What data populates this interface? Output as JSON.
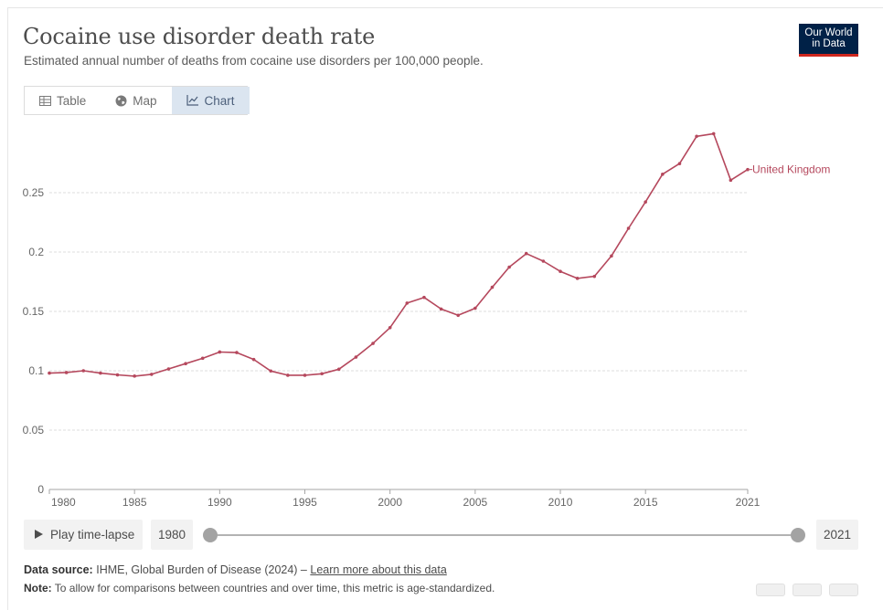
{
  "header": {
    "title": "Cocaine use disorder death rate",
    "subtitle": "Estimated annual number of deaths from cocaine use disorders per 100,000 people.",
    "logo_line1": "Our World",
    "logo_line2": "in Data"
  },
  "tabs": [
    {
      "label": "Table",
      "icon": "table-icon",
      "active": false
    },
    {
      "label": "Map",
      "icon": "globe-icon",
      "active": false
    },
    {
      "label": "Chart",
      "icon": "line-chart-icon",
      "active": true
    }
  ],
  "chart_data": {
    "type": "line",
    "title": "",
    "xlabel": "",
    "ylabel": "",
    "xlim": [
      1980,
      2021
    ],
    "ylim": [
      0,
      0.3
    ],
    "y_ticks": [
      0,
      0.05,
      0.1,
      0.15,
      0.2,
      0.25
    ],
    "y_tick_labels": [
      "0",
      "0.05",
      "0.1",
      "0.15",
      "0.2",
      "0.25"
    ],
    "x_ticks": [
      1980,
      1985,
      1990,
      1995,
      2000,
      2005,
      2010,
      2015,
      2021
    ],
    "x_tick_labels": [
      "1980",
      "1985",
      "1990",
      "1995",
      "2000",
      "2005",
      "2010",
      "2015",
      "2021"
    ],
    "grid": "horizontal dotted",
    "series": [
      {
        "name": "United Kingdom",
        "color": "#b5485d",
        "x": [
          1980,
          1981,
          1982,
          1983,
          1984,
          1985,
          1986,
          1987,
          1988,
          1989,
          1990,
          1991,
          1992,
          1993,
          1994,
          1995,
          1996,
          1997,
          1998,
          1999,
          2000,
          2001,
          2002,
          2003,
          2004,
          2005,
          2006,
          2007,
          2008,
          2009,
          2010,
          2011,
          2012,
          2013,
          2014,
          2015,
          2016,
          2017,
          2018,
          2019,
          2020,
          2021
        ],
        "values": [
          0.098,
          0.0985,
          0.1,
          0.098,
          0.0965,
          0.0955,
          0.097,
          0.1015,
          0.106,
          0.1105,
          0.1158,
          0.1153,
          0.1095,
          0.0998,
          0.0962,
          0.0962,
          0.0975,
          0.1013,
          0.1115,
          0.123,
          0.1363,
          0.157,
          0.1618,
          0.152,
          0.1467,
          0.1527,
          0.1703,
          0.1873,
          0.1987,
          0.1923,
          0.1837,
          0.1778,
          0.1795,
          0.1967,
          0.22,
          0.2422,
          0.2655,
          0.2745,
          0.2975,
          0.2997,
          0.2605,
          0.2695
        ]
      }
    ]
  },
  "controls": {
    "play_label": "Play time-lapse",
    "start_year": "1980",
    "end_year": "2021",
    "range_start": 1980,
    "range_end": 2021
  },
  "footer": {
    "source_label": "Data source:",
    "source_text": "IHME, Global Burden of Disease (2024) – ",
    "source_link": "Learn more about this data",
    "note_label": "Note:",
    "note_text": "To allow for comparisons between countries and over time, this metric is age-standardized."
  }
}
